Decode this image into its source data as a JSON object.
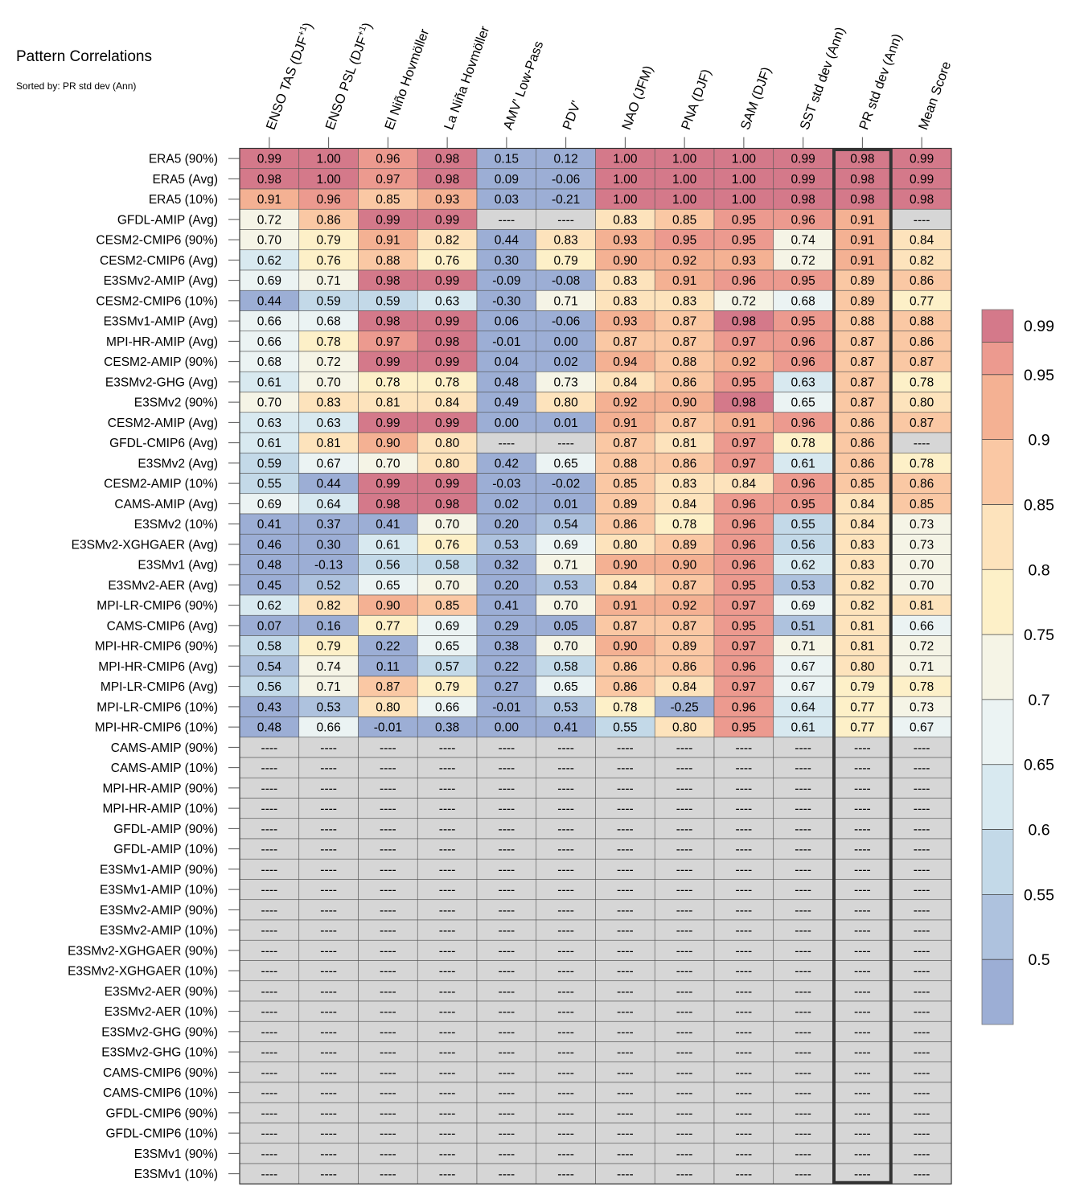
{
  "title": "Pattern Correlations",
  "subtitle": "Sorted by: PR std dev (Ann)",
  "chart_data": {
    "type": "heatmap",
    "columns": [
      {
        "main": "ENSO TAS (DJF",
        "sup": "+1",
        "end": ")"
      },
      {
        "main": "ENSO PSL (DJF",
        "sup": "+1",
        "end": ")"
      },
      {
        "main": "El Niño Hovmöller",
        "sup": "",
        "end": ""
      },
      {
        "main": "La Niña Hovmöller",
        "sup": "",
        "end": ""
      },
      {
        "main": "AMV' Low-Pass",
        "sup": "",
        "end": ""
      },
      {
        "main": "PDV'",
        "sup": "",
        "end": ""
      },
      {
        "main": "NAO (JFM)",
        "sup": "",
        "end": ""
      },
      {
        "main": "PNA (DJF)",
        "sup": "",
        "end": ""
      },
      {
        "main": "SAM (DJF)",
        "sup": "",
        "end": ""
      },
      {
        "main": "SST std dev (Ann)",
        "sup": "",
        "end": ""
      },
      {
        "main": "PR std dev (Ann)",
        "sup": "",
        "end": ""
      },
      {
        "main": "Mean Score",
        "sup": "",
        "end": ""
      }
    ],
    "highlight_column": "PR std dev (Ann)",
    "missing_label": "----",
    "rows": [
      "ERA5 (90%)",
      "ERA5 (Avg)",
      "ERA5 (10%)",
      "GFDL-AMIP (Avg)",
      "CESM2-CMIP6 (90%)",
      "CESM2-CMIP6 (Avg)",
      "E3SMv2-AMIP (Avg)",
      "CESM2-CMIP6 (10%)",
      "E3SMv1-AMIP (Avg)",
      "MPI-HR-AMIP (Avg)",
      "CESM2-AMIP (90%)",
      "E3SMv2-GHG (Avg)",
      "E3SMv2 (90%)",
      "CESM2-AMIP (Avg)",
      "GFDL-CMIP6 (Avg)",
      "E3SMv2 (Avg)",
      "CESM2-AMIP (10%)",
      "CAMS-AMIP (Avg)",
      "E3SMv2 (10%)",
      "E3SMv2-XGHGAER (Avg)",
      "E3SMv1 (Avg)",
      "E3SMv2-AER (Avg)",
      "MPI-LR-CMIP6 (90%)",
      "CAMS-CMIP6 (Avg)",
      "MPI-HR-CMIP6 (90%)",
      "MPI-HR-CMIP6 (Avg)",
      "MPI-LR-CMIP6 (Avg)",
      "MPI-LR-CMIP6 (10%)",
      "MPI-HR-CMIP6 (10%)",
      "CAMS-AMIP (90%)",
      "CAMS-AMIP (10%)",
      "MPI-HR-AMIP (90%)",
      "MPI-HR-AMIP (10%)",
      "GFDL-AMIP (90%)",
      "GFDL-AMIP (10%)",
      "E3SMv1-AMIP (90%)",
      "E3SMv1-AMIP (10%)",
      "E3SMv2-AMIP (90%)",
      "E3SMv2-AMIP (10%)",
      "E3SMv2-XGHGAER (90%)",
      "E3SMv2-XGHGAER (10%)",
      "E3SMv2-AER (90%)",
      "E3SMv2-AER (10%)",
      "E3SMv2-GHG (90%)",
      "E3SMv2-GHG (10%)",
      "CAMS-CMIP6 (90%)",
      "CAMS-CMIP6 (10%)",
      "GFDL-CMIP6 (90%)",
      "GFDL-CMIP6 (10%)",
      "E3SMv1 (90%)",
      "E3SMv1 (10%)"
    ],
    "values": [
      [
        0.99,
        1.0,
        0.96,
        0.98,
        0.15,
        0.12,
        1.0,
        1.0,
        1.0,
        0.99,
        0.98,
        0.99
      ],
      [
        0.98,
        1.0,
        0.97,
        0.98,
        0.09,
        -0.06,
        1.0,
        1.0,
        1.0,
        0.99,
        0.98,
        0.99
      ],
      [
        0.91,
        0.96,
        0.85,
        0.93,
        0.03,
        -0.21,
        1.0,
        1.0,
        1.0,
        0.98,
        0.98,
        0.98
      ],
      [
        0.72,
        0.86,
        0.99,
        0.99,
        null,
        null,
        0.83,
        0.85,
        0.95,
        0.96,
        0.91,
        null
      ],
      [
        0.7,
        0.79,
        0.91,
        0.82,
        0.44,
        0.83,
        0.93,
        0.95,
        0.95,
        0.74,
        0.91,
        0.84
      ],
      [
        0.62,
        0.76,
        0.88,
        0.76,
        0.3,
        0.79,
        0.9,
        0.92,
        0.93,
        0.72,
        0.91,
        0.82
      ],
      [
        0.69,
        0.71,
        0.98,
        0.99,
        -0.09,
        -0.08,
        0.83,
        0.91,
        0.96,
        0.95,
        0.89,
        0.86
      ],
      [
        0.44,
        0.59,
        0.59,
        0.63,
        -0.3,
        0.71,
        0.83,
        0.83,
        0.72,
        0.68,
        0.89,
        0.77
      ],
      [
        0.66,
        0.68,
        0.98,
        0.99,
        0.06,
        -0.06,
        0.93,
        0.87,
        0.98,
        0.95,
        0.88,
        0.88
      ],
      [
        0.66,
        0.78,
        0.97,
        0.98,
        -0.01,
        -0.0,
        0.87,
        0.87,
        0.97,
        0.96,
        0.87,
        0.86
      ],
      [
        0.68,
        0.72,
        0.99,
        0.99,
        0.04,
        0.02,
        0.94,
        0.88,
        0.92,
        0.96,
        0.87,
        0.87
      ],
      [
        0.61,
        0.7,
        0.78,
        0.78,
        0.48,
        0.73,
        0.84,
        0.86,
        0.95,
        0.63,
        0.87,
        0.78
      ],
      [
        0.7,
        0.83,
        0.81,
        0.84,
        0.49,
        0.8,
        0.92,
        0.9,
        0.98,
        0.65,
        0.87,
        0.8
      ],
      [
        0.63,
        0.63,
        0.99,
        0.99,
        -0.0,
        0.01,
        0.91,
        0.87,
        0.91,
        0.96,
        0.86,
        0.87
      ],
      [
        0.61,
        0.81,
        0.9,
        0.8,
        null,
        null,
        0.87,
        0.81,
        0.97,
        0.78,
        0.86,
        null
      ],
      [
        0.59,
        0.67,
        0.7,
        0.8,
        0.42,
        0.65,
        0.88,
        0.86,
        0.97,
        0.61,
        0.86,
        0.78
      ],
      [
        0.55,
        0.44,
        0.99,
        0.99,
        -0.03,
        -0.02,
        0.85,
        0.83,
        0.84,
        0.96,
        0.85,
        0.86
      ],
      [
        0.69,
        0.64,
        0.98,
        0.98,
        0.02,
        0.01,
        0.89,
        0.84,
        0.96,
        0.95,
        0.84,
        0.85
      ],
      [
        0.41,
        0.37,
        0.41,
        0.7,
        0.2,
        0.54,
        0.86,
        0.78,
        0.96,
        0.55,
        0.84,
        0.73
      ],
      [
        0.46,
        0.3,
        0.61,
        0.76,
        0.53,
        0.69,
        0.8,
        0.89,
        0.96,
        0.56,
        0.83,
        0.73
      ],
      [
        0.48,
        -0.13,
        0.56,
        0.58,
        0.32,
        0.71,
        0.9,
        0.9,
        0.96,
        0.62,
        0.83,
        0.7
      ],
      [
        0.45,
        0.52,
        0.65,
        0.7,
        0.2,
        0.53,
        0.84,
        0.87,
        0.95,
        0.53,
        0.82,
        0.7
      ],
      [
        0.62,
        0.82,
        0.9,
        0.85,
        0.41,
        0.7,
        0.91,
        0.92,
        0.97,
        0.69,
        0.82,
        0.81
      ],
      [
        0.07,
        0.16,
        0.77,
        0.69,
        0.29,
        0.05,
        0.87,
        0.87,
        0.95,
        0.51,
        0.81,
        0.66
      ],
      [
        0.58,
        0.79,
        0.22,
        0.65,
        0.38,
        0.7,
        0.9,
        0.89,
        0.97,
        0.71,
        0.81,
        0.72
      ],
      [
        0.54,
        0.74,
        0.11,
        0.57,
        0.22,
        0.58,
        0.86,
        0.86,
        0.96,
        0.67,
        0.8,
        0.71
      ],
      [
        0.56,
        0.71,
        0.87,
        0.79,
        0.27,
        0.65,
        0.86,
        0.84,
        0.97,
        0.67,
        0.79,
        0.78
      ],
      [
        0.43,
        0.53,
        0.8,
        0.66,
        -0.01,
        0.53,
        0.78,
        -0.25,
        0.96,
        0.64,
        0.77,
        0.73
      ],
      [
        0.48,
        0.66,
        -0.01,
        0.38,
        0.0,
        0.41,
        0.55,
        0.8,
        0.95,
        0.61,
        0.77,
        0.67
      ],
      [
        null,
        null,
        null,
        null,
        null,
        null,
        null,
        null,
        null,
        null,
        null,
        null
      ],
      [
        null,
        null,
        null,
        null,
        null,
        null,
        null,
        null,
        null,
        null,
        null,
        null
      ],
      [
        null,
        null,
        null,
        null,
        null,
        null,
        null,
        null,
        null,
        null,
        null,
        null
      ],
      [
        null,
        null,
        null,
        null,
        null,
        null,
        null,
        null,
        null,
        null,
        null,
        null
      ],
      [
        null,
        null,
        null,
        null,
        null,
        null,
        null,
        null,
        null,
        null,
        null,
        null
      ],
      [
        null,
        null,
        null,
        null,
        null,
        null,
        null,
        null,
        null,
        null,
        null,
        null
      ],
      [
        null,
        null,
        null,
        null,
        null,
        null,
        null,
        null,
        null,
        null,
        null,
        null
      ],
      [
        null,
        null,
        null,
        null,
        null,
        null,
        null,
        null,
        null,
        null,
        null,
        null
      ],
      [
        null,
        null,
        null,
        null,
        null,
        null,
        null,
        null,
        null,
        null,
        null,
        null
      ],
      [
        null,
        null,
        null,
        null,
        null,
        null,
        null,
        null,
        null,
        null,
        null,
        null
      ],
      [
        null,
        null,
        null,
        null,
        null,
        null,
        null,
        null,
        null,
        null,
        null,
        null
      ],
      [
        null,
        null,
        null,
        null,
        null,
        null,
        null,
        null,
        null,
        null,
        null,
        null
      ],
      [
        null,
        null,
        null,
        null,
        null,
        null,
        null,
        null,
        null,
        null,
        null,
        null
      ],
      [
        null,
        null,
        null,
        null,
        null,
        null,
        null,
        null,
        null,
        null,
        null,
        null
      ],
      [
        null,
        null,
        null,
        null,
        null,
        null,
        null,
        null,
        null,
        null,
        null,
        null
      ],
      [
        null,
        null,
        null,
        null,
        null,
        null,
        null,
        null,
        null,
        null,
        null,
        null
      ],
      [
        null,
        null,
        null,
        null,
        null,
        null,
        null,
        null,
        null,
        null,
        null,
        null
      ],
      [
        null,
        null,
        null,
        null,
        null,
        null,
        null,
        null,
        null,
        null,
        null,
        null
      ],
      [
        null,
        null,
        null,
        null,
        null,
        null,
        null,
        null,
        null,
        null,
        null,
        null
      ],
      [
        null,
        null,
        null,
        null,
        null,
        null,
        null,
        null,
        null,
        null,
        null,
        null
      ],
      [
        null,
        null,
        null,
        null,
        null,
        null,
        null,
        null,
        null,
        null,
        null,
        null
      ],
      [
        null,
        null,
        null,
        null,
        null,
        null,
        null,
        null,
        null,
        null,
        null,
        null
      ]
    ],
    "colorbar": {
      "boundaries": [
        0.45,
        0.5,
        0.55,
        0.6,
        0.65,
        0.7,
        0.75,
        0.8,
        0.85,
        0.9,
        0.95,
        0.975,
        1.0
      ],
      "colors": [
        "#9caed5",
        "#aec2de",
        "#c3d9e8",
        "#d8e9f0",
        "#ebf3f3",
        "#f5f4e6",
        "#fdf0c8",
        "#fde3bc",
        "#fac8a4",
        "#f4b193",
        "#ec9a8f",
        "#d4798a"
      ],
      "tick_labels": [
        "0.5",
        "0.55",
        "0.6",
        "0.65",
        "0.7",
        "0.75",
        "0.8",
        "0.85",
        "0.9",
        "0.95",
        "0.99"
      ],
      "missing_color": "#d6d6d6"
    }
  }
}
